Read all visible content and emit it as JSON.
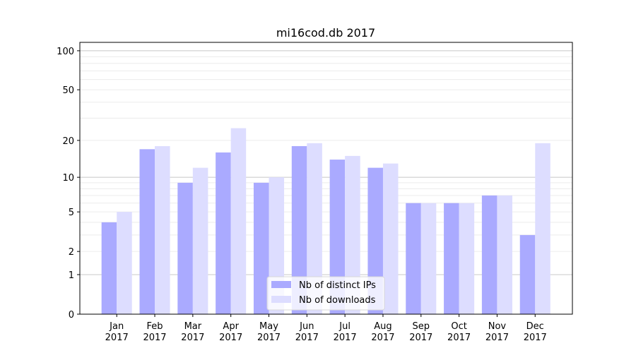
{
  "chart_data": {
    "type": "bar",
    "title": "mi16cod.db 2017",
    "xlabel": "",
    "ylabel": "",
    "yscale": "log(1+y)",
    "ylim": [
      0,
      116
    ],
    "yticks": [
      0,
      1,
      2,
      5,
      10,
      20,
      50,
      100
    ],
    "ytick_labels": [
      "0",
      "1",
      "2",
      "5",
      "10",
      "20",
      "50",
      "100"
    ],
    "grid": true,
    "legend_position": "bottom-center",
    "categories": [
      [
        "Jan",
        "2017"
      ],
      [
        "Feb",
        "2017"
      ],
      [
        "Mar",
        "2017"
      ],
      [
        "Apr",
        "2017"
      ],
      [
        "May",
        "2017"
      ],
      [
        "Jun",
        "2017"
      ],
      [
        "Jul",
        "2017"
      ],
      [
        "Aug",
        "2017"
      ],
      [
        "Sep",
        "2017"
      ],
      [
        "Oct",
        "2017"
      ],
      [
        "Nov",
        "2017"
      ],
      [
        "Dec",
        "2017"
      ]
    ],
    "series": [
      {
        "name": "Nb of distinct IPs",
        "color": "#aaaaff",
        "values": [
          4,
          17,
          9,
          16,
          9,
          18,
          14,
          12,
          6,
          6,
          7,
          3
        ]
      },
      {
        "name": "Nb of downloads",
        "color": "#ddddff",
        "values": [
          5,
          18,
          12,
          25,
          10,
          19,
          15,
          13,
          6,
          6,
          7,
          19
        ]
      }
    ]
  }
}
